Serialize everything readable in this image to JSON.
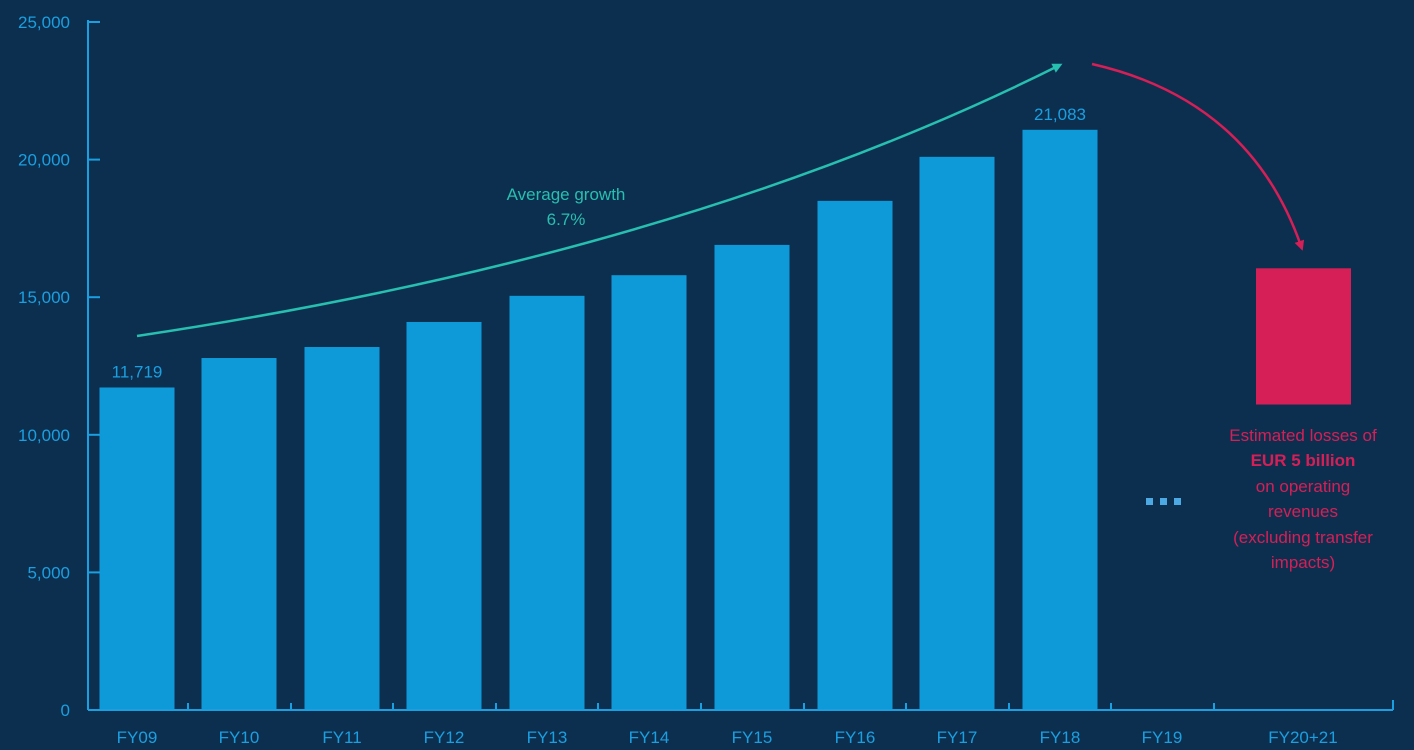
{
  "colors": {
    "background": "#0d2f4f",
    "axis": "#1a9fe0",
    "bar": "#0e9ad8",
    "tick_text": "#1a9fe0",
    "growth": "#27bfb0",
    "loss": "#d61f57",
    "ellipsis": "#4da9e4"
  },
  "chart_data": {
    "type": "bar",
    "categories": [
      "FY09",
      "FY10",
      "FY11",
      "FY12",
      "FY13",
      "FY14",
      "FY15",
      "FY16",
      "FY17",
      "FY18",
      "FY19",
      "FY20+21"
    ],
    "values": [
      11719,
      12790,
      13190,
      14100,
      15050,
      15800,
      16900,
      18500,
      20100,
      21083,
      null,
      null
    ],
    "data_labels": {
      "FY09": "11,719",
      "FY18": "21,083"
    },
    "ylim": [
      0,
      25000
    ],
    "yticks": [
      0,
      5000,
      10000,
      15000,
      20000,
      25000
    ],
    "ytick_labels": [
      "0",
      "5,000",
      "10,000",
      "15,000",
      "20,000",
      "25,000"
    ],
    "grid": false,
    "xlabel": "",
    "ylabel": "",
    "title": "",
    "placeholder": {
      "category": "FY19",
      "symbol": "..."
    },
    "loss_estimate": {
      "category": "FY20+21",
      "range": [
        11100,
        16050
      ]
    },
    "annotations": {
      "growth_line1": "Average growth",
      "growth_line2": "6.7%",
      "loss_line1": "Estimated losses of",
      "loss_line2": "EUR 5 billion",
      "loss_line3": "on operating",
      "loss_line4": "revenues",
      "loss_line5": "(excluding transfer",
      "loss_line6": "impacts)"
    }
  }
}
